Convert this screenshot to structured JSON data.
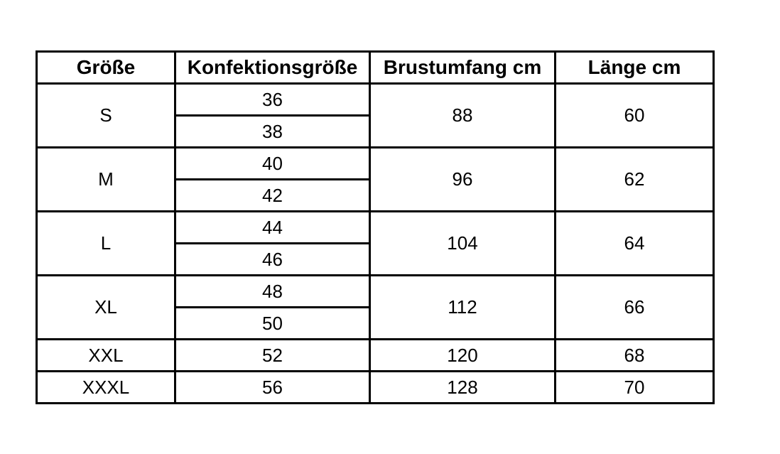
{
  "chart_data": {
    "type": "table",
    "columns": [
      "Größe",
      "Konfektionsgröße",
      "Brustumfang cm",
      "Länge cm"
    ],
    "rows": [
      {
        "groesse": "S",
        "konfektionsgroesse": [
          "36",
          "38"
        ],
        "brustumfang_cm": "88",
        "laenge_cm": "60"
      },
      {
        "groesse": "M",
        "konfektionsgroesse": [
          "40",
          "42"
        ],
        "brustumfang_cm": "96",
        "laenge_cm": "62"
      },
      {
        "groesse": "L",
        "konfektionsgroesse": [
          "44",
          "46"
        ],
        "brustumfang_cm": "104",
        "laenge_cm": "64"
      },
      {
        "groesse": "XL",
        "konfektionsgroesse": [
          "48",
          "50"
        ],
        "brustumfang_cm": "112",
        "laenge_cm": "66"
      },
      {
        "groesse": "XXL",
        "konfektionsgroesse": [
          "52"
        ],
        "brustumfang_cm": "120",
        "laenge_cm": "68"
      },
      {
        "groesse": "XXXL",
        "konfektionsgroesse": [
          "56"
        ],
        "brustumfang_cm": "128",
        "laenge_cm": "70"
      }
    ],
    "layout": {
      "grid": true,
      "merged_cells": "Größe, Brustumfang and Länge cells span both Konfektionsgröße sub-rows for S, M, L, XL"
    },
    "colors": {
      "border": "#000000",
      "text": "#000000",
      "background": "#ffffff"
    }
  }
}
